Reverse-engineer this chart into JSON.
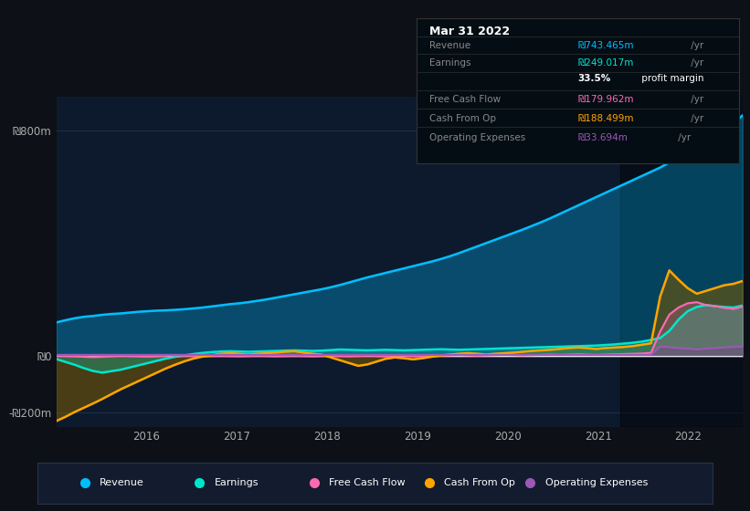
{
  "bg_color": "#0d1117",
  "chart_bg": "#0d1a2e",
  "legend_bg": "#131c2e",
  "tooltip_bg": "#050d14",
  "ylim": [
    -250,
    920
  ],
  "yticks": [
    -200,
    0,
    800
  ],
  "ytick_labels": [
    "-₪200m",
    "₪0",
    "₪800m"
  ],
  "xtick_positions": [
    2016,
    2017,
    2018,
    2019,
    2020,
    2021,
    2022
  ],
  "xtick_labels": [
    "2016",
    "2017",
    "2018",
    "2019",
    "2020",
    "2021",
    "2022"
  ],
  "xmin": 2015.0,
  "xmax": 2022.6,
  "tooltip_title": "Mar 31 2022",
  "tooltip_rows": [
    {
      "label": "Revenue",
      "value": "₪743.465m",
      "suffix": " /yr",
      "color": "#00bfff"
    },
    {
      "label": "Earnings",
      "value": "₪249.017m",
      "suffix": " /yr",
      "color": "#00e5cc"
    },
    {
      "label": "",
      "value": "33.5%",
      "suffix": " profit margin",
      "color": "#ffffff",
      "bold": true
    },
    {
      "label": "Free Cash Flow",
      "value": "₪179.962m",
      "suffix": " /yr",
      "color": "#ff69b4"
    },
    {
      "label": "Cash From Op",
      "value": "₪188.499m",
      "suffix": " /yr",
      "color": "#ffa500"
    },
    {
      "label": "Operating Expenses",
      "value": "₪33.694m",
      "suffix": " /yr",
      "color": "#9b59b6"
    }
  ],
  "legend_items": [
    {
      "label": "Revenue",
      "color": "#00bfff"
    },
    {
      "label": "Earnings",
      "color": "#00e5cc"
    },
    {
      "label": "Free Cash Flow",
      "color": "#ff69b4"
    },
    {
      "label": "Cash From Op",
      "color": "#ffa500"
    },
    {
      "label": "Operating Expenses",
      "color": "#9b59b6"
    }
  ],
  "shade_x_start": 2021.25,
  "shade_x_end": 2022.6,
  "revenue": [
    120,
    128,
    135,
    140,
    143,
    147,
    150,
    152,
    155,
    158,
    160,
    162,
    163,
    165,
    167,
    170,
    173,
    177,
    181,
    185,
    188,
    192,
    197,
    202,
    208,
    214,
    220,
    226,
    232,
    238,
    245,
    253,
    262,
    271,
    280,
    288,
    296,
    304,
    312,
    320,
    328,
    336,
    345,
    355,
    366,
    378,
    390,
    402,
    414,
    426,
    438,
    450,
    463,
    476,
    490,
    505,
    520,
    535,
    550,
    565,
    580,
    595,
    610,
    625,
    640,
    655,
    670,
    688,
    706,
    725,
    745,
    765,
    785,
    805,
    825,
    855
  ],
  "earnings": [
    -10,
    -20,
    -30,
    -42,
    -52,
    -58,
    -53,
    -48,
    -40,
    -32,
    -24,
    -16,
    -8,
    -2,
    3,
    8,
    12,
    15,
    17,
    18,
    17,
    16,
    17,
    18,
    19,
    20,
    21,
    20,
    19,
    20,
    22,
    24,
    23,
    22,
    21,
    22,
    23,
    22,
    21,
    22,
    23,
    24,
    25,
    24,
    23,
    24,
    25,
    26,
    27,
    28,
    29,
    30,
    31,
    32,
    33,
    34,
    35,
    36,
    37,
    38,
    40,
    42,
    45,
    48,
    52,
    58,
    65,
    90,
    130,
    160,
    175,
    182,
    178,
    175,
    173,
    180
  ],
  "free_cash_flow": [
    2,
    1,
    0,
    -2,
    -3,
    -2,
    0,
    2,
    1,
    0,
    -1,
    0,
    2,
    3,
    2,
    1,
    0,
    1,
    2,
    1,
    0,
    1,
    2,
    1,
    0,
    1,
    2,
    1,
    0,
    1,
    2,
    1,
    0,
    1,
    2,
    1,
    0,
    1,
    2,
    1,
    0,
    1,
    2,
    3,
    4,
    3,
    2,
    3,
    4,
    5,
    4,
    3,
    4,
    5,
    6,
    5,
    6,
    7,
    6,
    5,
    6,
    7,
    8,
    9,
    10,
    12,
    88,
    148,
    173,
    188,
    192,
    182,
    178,
    172,
    168,
    176
  ],
  "cash_from_op": [
    -230,
    -215,
    -198,
    -183,
    -168,
    -152,
    -135,
    -118,
    -103,
    -88,
    -73,
    -58,
    -43,
    -30,
    -18,
    -8,
    -1,
    4,
    9,
    11,
    9,
    6,
    9,
    11,
    13,
    16,
    18,
    13,
    9,
    6,
    -4,
    -14,
    -24,
    -34,
    -29,
    -19,
    -9,
    -4,
    -7,
    -11,
    -7,
    -2,
    3,
    6,
    9,
    11,
    9,
    6,
    9,
    11,
    13,
    16,
    19,
    21,
    23,
    26,
    29,
    31,
    29,
    26,
    29,
    31,
    33,
    36,
    41,
    46,
    212,
    305,
    272,
    242,
    222,
    232,
    242,
    252,
    257,
    267
  ],
  "op_expenses": [
    5,
    5,
    5,
    5,
    5,
    5,
    5,
    5,
    5,
    5,
    5,
    5,
    5,
    5,
    5,
    5,
    5,
    5,
    5,
    5,
    5,
    5,
    5,
    5,
    5,
    5,
    5,
    5,
    5,
    5,
    5,
    5,
    5,
    5,
    5,
    5,
    5,
    5,
    5,
    5,
    5,
    5,
    5,
    5,
    5,
    5,
    5,
    5,
    5,
    5,
    5,
    5,
    5,
    5,
    5,
    5,
    5,
    5,
    5,
    5,
    5,
    5,
    5,
    5,
    5,
    5,
    34,
    32,
    29,
    27,
    24,
    27,
    29,
    31,
    33,
    34
  ]
}
